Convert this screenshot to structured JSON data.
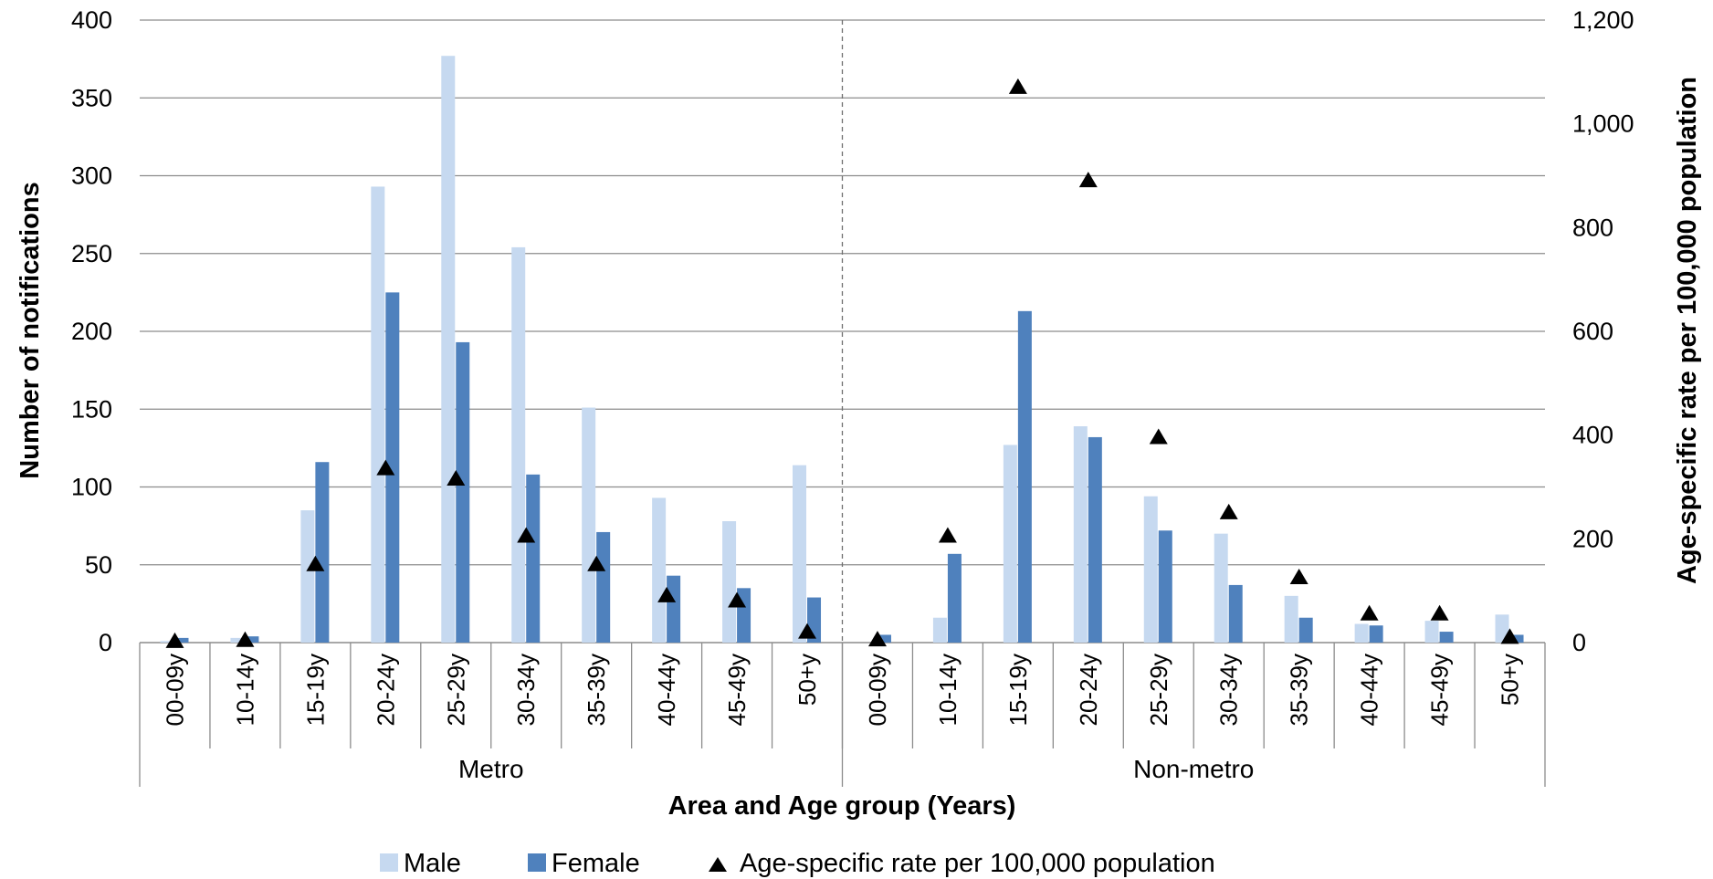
{
  "chart_data": {
    "type": "bar",
    "xlabel": "Area and Age group (Years)",
    "ylabel_left": "Number of notifications",
    "ylabel_right": "Age-specific rate per 100,000 population",
    "ylim_left": [
      0,
      400
    ],
    "ylim_right": [
      0,
      1200
    ],
    "yticks_left": [
      0,
      50,
      100,
      150,
      200,
      250,
      300,
      350,
      400
    ],
    "yticks_right": [
      0,
      200,
      400,
      600,
      800,
      1000,
      1200
    ],
    "ytick_labels_left": [
      "0",
      "50",
      "100",
      "150",
      "200",
      "250",
      "300",
      "350",
      "400"
    ],
    "ytick_labels_right": [
      "0",
      "200",
      "400",
      "600",
      "800",
      "1,000",
      "1,200"
    ],
    "grid": true,
    "legend_position": "bottom",
    "groups": [
      {
        "name": "Metro",
        "categories": [
          "00-09y",
          "10-14y",
          "15-19y",
          "20-24y",
          "25-29y",
          "30-34y",
          "35-39y",
          "40-44y",
          "45-49y",
          "50+y"
        ],
        "male": [
          1,
          3,
          85,
          293,
          377,
          254,
          151,
          93,
          78,
          114
        ],
        "female": [
          3,
          4,
          116,
          225,
          193,
          108,
          71,
          43,
          35,
          29
        ],
        "rate": [
          2,
          4,
          150,
          335,
          315,
          205,
          150,
          90,
          80,
          20
        ]
      },
      {
        "name": "Non-metro",
        "categories": [
          "00-09y",
          "10-14y",
          "15-19y",
          "20-24y",
          "25-29y",
          "30-34y",
          "35-39y",
          "40-44y",
          "45-49y",
          "50+y"
        ],
        "male": [
          0,
          16,
          127,
          139,
          94,
          70,
          30,
          12,
          14,
          18
        ],
        "female": [
          5,
          57,
          213,
          132,
          72,
          37,
          16,
          11,
          7,
          5
        ],
        "rate": [
          5,
          205,
          1070,
          890,
          395,
          250,
          125,
          55,
          55,
          10
        ]
      }
    ],
    "series": [
      {
        "name": "Male",
        "type": "bar",
        "axis": "left",
        "color": "#c6d9f0"
      },
      {
        "name": "Female",
        "type": "bar",
        "axis": "left",
        "color": "#4f81bd"
      },
      {
        "name": "Age-specific rate per 100,000 population",
        "type": "marker-triangle",
        "axis": "right",
        "color": "#000000"
      }
    ]
  }
}
